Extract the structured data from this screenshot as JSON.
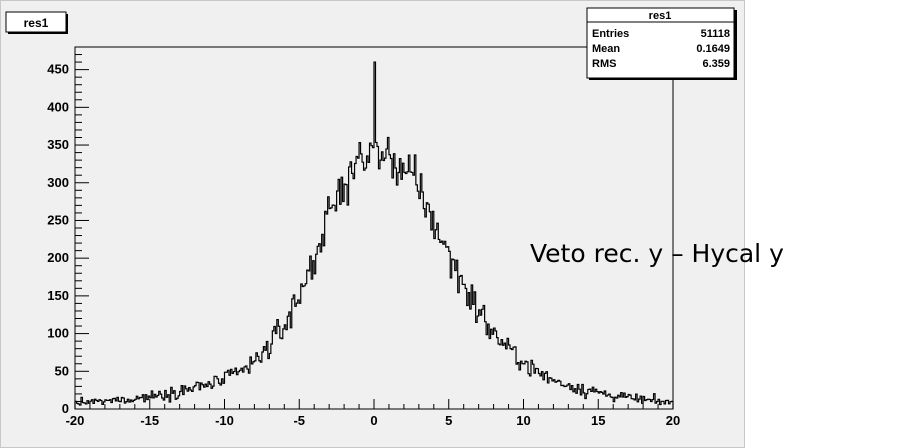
{
  "chart_data": {
    "type": "histogram",
    "title": "res1",
    "xlabel": "",
    "ylabel": "",
    "xlim": [
      -20,
      20
    ],
    "ylim": [
      0,
      480
    ],
    "bins": 400,
    "xticks": [
      "-20",
      "-15",
      "-10",
      "-5",
      "0",
      "5",
      "10",
      "15",
      "20"
    ],
    "yticks": [
      "0",
      "50",
      "100",
      "150",
      "200",
      "250",
      "300",
      "350",
      "400",
      "450"
    ],
    "envelope": {
      "x": [
        -20,
        -18,
        -16,
        -14,
        -12,
        -10,
        -8,
        -6,
        -5,
        -4,
        -3,
        -2,
        -1,
        0,
        1,
        2,
        3,
        4,
        5,
        6,
        7,
        8,
        9,
        10,
        11,
        12,
        14,
        16,
        18,
        20
      ],
      "y": [
        8,
        10,
        14,
        20,
        28,
        38,
        60,
        110,
        150,
        200,
        255,
        300,
        330,
        340,
        335,
        318,
        292,
        248,
        205,
        165,
        130,
        100,
        80,
        62,
        48,
        38,
        26,
        18,
        12,
        8
      ]
    },
    "peak": {
      "x": 0,
      "y": 460
    },
    "colors": {
      "line": "#000000",
      "plot_background": "#f0f0f0",
      "frame": "#000000"
    }
  },
  "stats_box": {
    "title": "res1",
    "rows": [
      {
        "label": "Entries",
        "value": "51118"
      },
      {
        "label": "Mean",
        "value": "0.1649"
      },
      {
        "label": "RMS",
        "value": "6.359"
      }
    ]
  },
  "annotation": {
    "text": "Veto rec. y – Hycal y"
  }
}
